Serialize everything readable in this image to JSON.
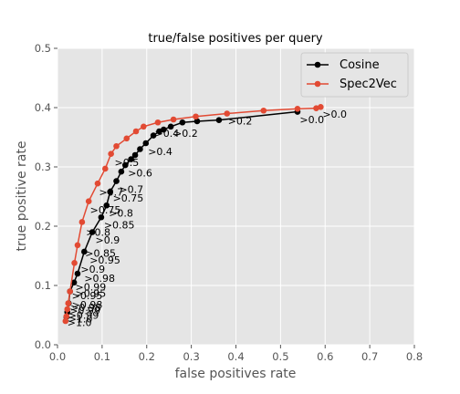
{
  "chart_data": {
    "type": "line",
    "title": "true/false positives per query",
    "xlabel": "false positives rate",
    "ylabel": "true positive rate",
    "xlim": [
      0.0,
      0.8
    ],
    "ylim": [
      0.0,
      0.5
    ],
    "xticks": [
      "0.0",
      "0.1",
      "0.2",
      "0.3",
      "0.4",
      "0.5",
      "0.6",
      "0.7",
      "0.8"
    ],
    "yticks": [
      "0.0",
      "0.1",
      "0.2",
      "0.3",
      "0.4",
      "0.5"
    ],
    "grid": true,
    "legend_position": "top-right",
    "series": [
      {
        "name": "Cosine",
        "color": "#000000",
        "points": [
          {
            "x": 0.02,
            "y": 0.047
          },
          {
            "x": 0.022,
            "y": 0.055
          },
          {
            "x": 0.025,
            "y": 0.07
          },
          {
            "x": 0.028,
            "y": 0.09
          },
          {
            "x": 0.037,
            "y": 0.105
          },
          {
            "x": 0.045,
            "y": 0.12
          },
          {
            "x": 0.06,
            "y": 0.157
          },
          {
            "x": 0.078,
            "y": 0.19
          },
          {
            "x": 0.098,
            "y": 0.215
          },
          {
            "x": 0.11,
            "y": 0.235
          },
          {
            "x": 0.118,
            "y": 0.258
          },
          {
            "x": 0.132,
            "y": 0.276
          },
          {
            "x": 0.143,
            "y": 0.292
          },
          {
            "x": 0.152,
            "y": 0.303
          },
          {
            "x": 0.165,
            "y": 0.313
          },
          {
            "x": 0.174,
            "y": 0.32
          },
          {
            "x": 0.185,
            "y": 0.33
          },
          {
            "x": 0.198,
            "y": 0.34
          },
          {
            "x": 0.215,
            "y": 0.353
          },
          {
            "x": 0.228,
            "y": 0.36
          },
          {
            "x": 0.238,
            "y": 0.363
          },
          {
            "x": 0.254,
            "y": 0.368
          },
          {
            "x": 0.28,
            "y": 0.375
          },
          {
            "x": 0.313,
            "y": 0.377
          },
          {
            "x": 0.362,
            "y": 0.379
          },
          {
            "x": 0.538,
            "y": 0.393
          }
        ]
      },
      {
        "name": "Spec2Vec",
        "color": "#e24a33",
        "points": [
          {
            "x": 0.018,
            "y": 0.04
          },
          {
            "x": 0.02,
            "y": 0.048
          },
          {
            "x": 0.022,
            "y": 0.06
          },
          {
            "x": 0.024,
            "y": 0.07
          },
          {
            "x": 0.028,
            "y": 0.09
          },
          {
            "x": 0.038,
            "y": 0.138
          },
          {
            "x": 0.045,
            "y": 0.168
          },
          {
            "x": 0.055,
            "y": 0.207
          },
          {
            "x": 0.07,
            "y": 0.242
          },
          {
            "x": 0.09,
            "y": 0.272
          },
          {
            "x": 0.107,
            "y": 0.297
          },
          {
            "x": 0.12,
            "y": 0.322
          },
          {
            "x": 0.132,
            "y": 0.335
          },
          {
            "x": 0.155,
            "y": 0.348
          },
          {
            "x": 0.176,
            "y": 0.36
          },
          {
            "x": 0.193,
            "y": 0.368
          },
          {
            "x": 0.225,
            "y": 0.375
          },
          {
            "x": 0.26,
            "y": 0.38
          },
          {
            "x": 0.31,
            "y": 0.385
          },
          {
            "x": 0.38,
            "y": 0.39
          },
          {
            "x": 0.462,
            "y": 0.395
          },
          {
            "x": 0.538,
            "y": 0.398
          },
          {
            "x": 0.58,
            "y": 0.399
          },
          {
            "x": 0.59,
            "y": 0.401
          }
        ]
      }
    ],
    "annotations": [
      {
        "text": ">1.0",
        "x": 0.022,
        "y": 0.038
      },
      {
        "text": ">1.0",
        "x": 0.024,
        "y": 0.044
      },
      {
        "text": ">0.99",
        "x": 0.024,
        "y": 0.05
      },
      {
        "text": ">0.99",
        "x": 0.027,
        "y": 0.058
      },
      {
        "text": ">0.98",
        "x": 0.029,
        "y": 0.063
      },
      {
        "text": ">0.98",
        "x": 0.032,
        "y": 0.068
      },
      {
        "text": ">0.95",
        "x": 0.032,
        "y": 0.083
      },
      {
        "text": ">0.95",
        "x": 0.04,
        "y": 0.087
      },
      {
        "text": ">0.99",
        "x": 0.04,
        "y": 0.098
      },
      {
        "text": ">0.98",
        "x": 0.06,
        "y": 0.112
      },
      {
        "text": ">0.9",
        "x": 0.052,
        "y": 0.128
      },
      {
        "text": ">0.95",
        "x": 0.072,
        "y": 0.143
      },
      {
        "text": ">0.85",
        "x": 0.062,
        "y": 0.155
      },
      {
        "text": ">0.9",
        "x": 0.085,
        "y": 0.177
      },
      {
        "text": ">0.8",
        "x": 0.064,
        "y": 0.19
      },
      {
        "text": ">0.85",
        "x": 0.104,
        "y": 0.202
      },
      {
        "text": ">0.75",
        "x": 0.073,
        "y": 0.228
      },
      {
        "text": ">0.8",
        "x": 0.115,
        "y": 0.222
      },
      {
        "text": ">0.75",
        "x": 0.124,
        "y": 0.248
      },
      {
        "text": ">0.7",
        "x": 0.093,
        "y": 0.258
      },
      {
        "text": ">0.7",
        "x": 0.138,
        "y": 0.262
      },
      {
        "text": ">0.6",
        "x": 0.158,
        "y": 0.29
      },
      {
        "text": ">0.5",
        "x": 0.128,
        "y": 0.308
      },
      {
        "text": ">0.4",
        "x": 0.203,
        "y": 0.326
      },
      {
        "text": ">0.4",
        "x": 0.218,
        "y": 0.357
      },
      {
        "text": ">0.2",
        "x": 0.26,
        "y": 0.357
      },
      {
        "text": ">0.2",
        "x": 0.382,
        "y": 0.378
      },
      {
        "text": ">0.0",
        "x": 0.543,
        "y": 0.38
      },
      {
        "text": ">0.0",
        "x": 0.594,
        "y": 0.389
      }
    ]
  }
}
